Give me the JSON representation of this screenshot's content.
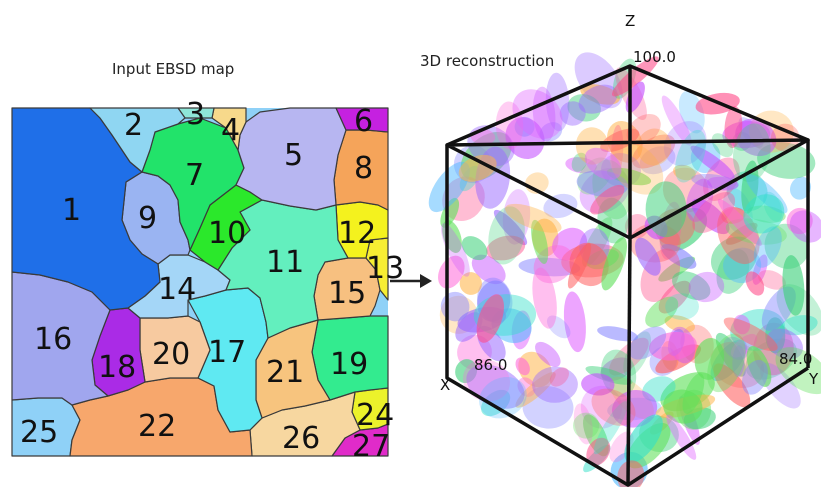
{
  "left_panel": {
    "caption": "Input EBSD map",
    "grains": [
      {
        "label": "1",
        "color": "#1f6fe8"
      },
      {
        "label": "2",
        "color": "#8fd6f2"
      },
      {
        "label": "3",
        "color": "#8ee6d8"
      },
      {
        "label": "4",
        "color": "#f7d98b"
      },
      {
        "label": "5",
        "color": "#b7b6f1"
      },
      {
        "label": "6",
        "color": "#c521e0"
      },
      {
        "label": "7",
        "color": "#22e36a"
      },
      {
        "label": "8",
        "color": "#f5a45a"
      },
      {
        "label": "9",
        "color": "#9ab4f2"
      },
      {
        "label": "10",
        "color": "#2be82b"
      },
      {
        "label": "11",
        "color": "#63efbe"
      },
      {
        "label": "12",
        "color": "#f4f21e"
      },
      {
        "label": "13",
        "color": "#f7ee33"
      },
      {
        "label": "14",
        "color": "#a4d6f7"
      },
      {
        "label": "15",
        "color": "#f7c080"
      },
      {
        "label": "16",
        "color": "#a0a6ee"
      },
      {
        "label": "17",
        "color": "#5fe9f2"
      },
      {
        "label": "18",
        "color": "#aa2be6"
      },
      {
        "label": "19",
        "color": "#33eb8f"
      },
      {
        "label": "20",
        "color": "#f7caa0"
      },
      {
        "label": "21",
        "color": "#f7c47e"
      },
      {
        "label": "22",
        "color": "#f7a76c"
      },
      {
        "label": "24",
        "color": "#ecf22b"
      },
      {
        "label": "25",
        "color": "#8fd1f7"
      },
      {
        "label": "26",
        "color": "#f7d7a0"
      },
      {
        "label": "27",
        "color": "#e02bc9"
      }
    ]
  },
  "arrow": {
    "color": "#222222"
  },
  "right_panel": {
    "caption": "3D reconstruction",
    "z_axis_label": "Z",
    "x_axis_label": "X",
    "y_axis_label": "Y",
    "z_max": "100.0",
    "x_max": "86.0",
    "y_max": "84.0",
    "ellipsoid_colors": [
      "#ff4d8a",
      "#33e0c8",
      "#9b6bff",
      "#5fe05a",
      "#ff66d9",
      "#4db8ff",
      "#ffb347",
      "#c44dff",
      "#ff5c5c",
      "#3dd17a",
      "#7f7fff",
      "#e066ff"
    ]
  }
}
